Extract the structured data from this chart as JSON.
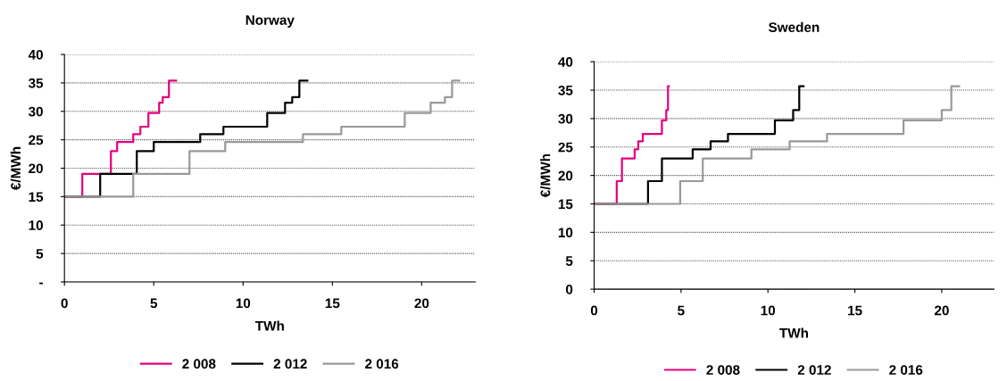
{
  "chart_data": [
    {
      "type": "step",
      "title": "Norway",
      "xlabel": "TWh",
      "ylabel": "€/MWh",
      "xlim": [
        0,
        23
      ],
      "xticks": [
        0,
        5,
        10,
        15,
        20
      ],
      "ylim": [
        0,
        40
      ],
      "yticks": [
        {
          "value": 0,
          "label": "-"
        },
        5,
        10,
        15,
        20,
        25,
        30,
        35,
        40
      ],
      "grid": "y",
      "legend": "bottom",
      "series": [
        {
          "name": "2 008",
          "color": "#e6007e",
          "x": [
            0,
            1.0,
            2.6,
            2.95,
            3.85,
            4.25,
            4.7,
            5.3,
            5.5,
            5.85,
            6.25
          ],
          "values": [
            15,
            19,
            23,
            24.6,
            26,
            27.3,
            29.7,
            31.5,
            32.5,
            35.4,
            35.4
          ]
        },
        {
          "name": "2 012",
          "color": "#000000",
          "x": [
            0,
            2.0,
            4.05,
            5.0,
            7.6,
            8.9,
            11.35,
            12.35,
            12.75,
            13.15,
            13.6
          ],
          "values": [
            15,
            19,
            23,
            24.6,
            26,
            27.3,
            29.7,
            31.5,
            32.5,
            35.4,
            35.4
          ]
        },
        {
          "name": "2 016",
          "color": "#999999",
          "x": [
            0,
            3.85,
            7.0,
            9.0,
            13.35,
            15.5,
            19.05,
            20.5,
            21.3,
            21.7,
            22.1
          ],
          "values": [
            15,
            19,
            23,
            24.6,
            26,
            27.3,
            29.7,
            31.5,
            32.5,
            35.4,
            35.4
          ]
        }
      ]
    },
    {
      "type": "step",
      "title": "Sweden",
      "xlabel": "TWh",
      "ylabel": "€/MWh",
      "xlim": [
        0,
        23
      ],
      "xticks": [
        0,
        5,
        10,
        15,
        20
      ],
      "ylim": [
        0,
        40
      ],
      "yticks": [
        0,
        5,
        10,
        15,
        20,
        25,
        30,
        35,
        40
      ],
      "grid": "y",
      "legend": "bottom",
      "series": [
        {
          "name": "2 008",
          "color": "#e6007e",
          "x": [
            0,
            1.3,
            1.6,
            2.33,
            2.54,
            2.8,
            3.9,
            4.15,
            4.25,
            4.3
          ],
          "values": [
            15,
            19,
            23,
            24.6,
            26,
            27.3,
            29.7,
            31.5,
            35.7,
            35.7
          ]
        },
        {
          "name": "2 012",
          "color": "#000000",
          "x": [
            0,
            3.1,
            3.9,
            5.67,
            6.7,
            7.7,
            10.4,
            11.45,
            11.8,
            12.05
          ],
          "values": [
            15,
            19,
            23,
            24.6,
            26,
            27.3,
            29.7,
            31.5,
            35.7,
            35.7
          ]
        },
        {
          "name": "2 016",
          "color": "#999999",
          "x": [
            0,
            4.95,
            6.25,
            9.05,
            11.25,
            13.4,
            17.8,
            20.0,
            20.55,
            21.0
          ],
          "values": [
            15,
            19,
            23,
            24.6,
            26,
            27.3,
            29.7,
            31.5,
            35.7,
            35.7
          ]
        }
      ]
    }
  ]
}
